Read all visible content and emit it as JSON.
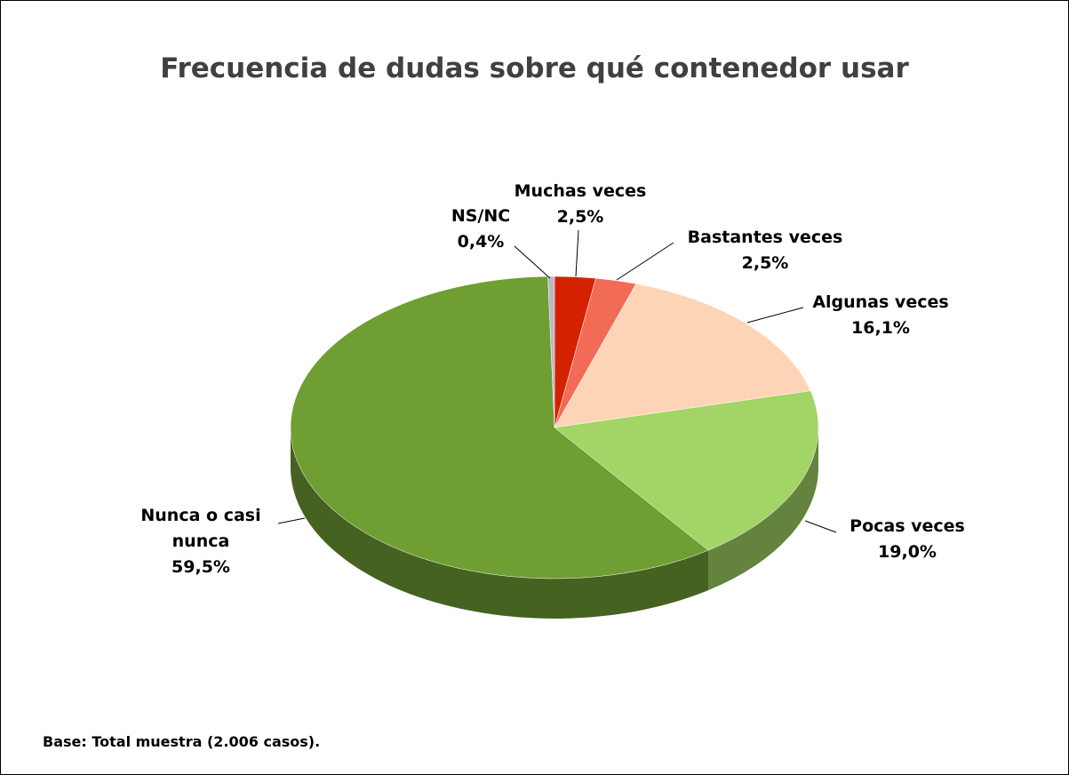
{
  "chart_data": {
    "type": "pie",
    "title": "Frecuencia de dudas sobre qué contenedor usar",
    "categories": [
      "Muchas veces",
      "Bastantes veces",
      "Algunas veces",
      "Pocas veces",
      "Nunca o casi nunca",
      "NS/NC"
    ],
    "values": [
      2.5,
      2.5,
      16.1,
      19.0,
      59.5,
      0.4
    ],
    "value_labels": [
      "2,5%",
      "2,5%",
      "16,1%",
      "19,0%",
      "59,5%",
      "0,4%"
    ],
    "colors": [
      "#d42200",
      "#f26b57",
      "#fdd5b6",
      "#a2d466",
      "#6f9e33",
      "#b9b9c9"
    ],
    "footnote": "Base: Total muestra (2.006 casos)."
  }
}
